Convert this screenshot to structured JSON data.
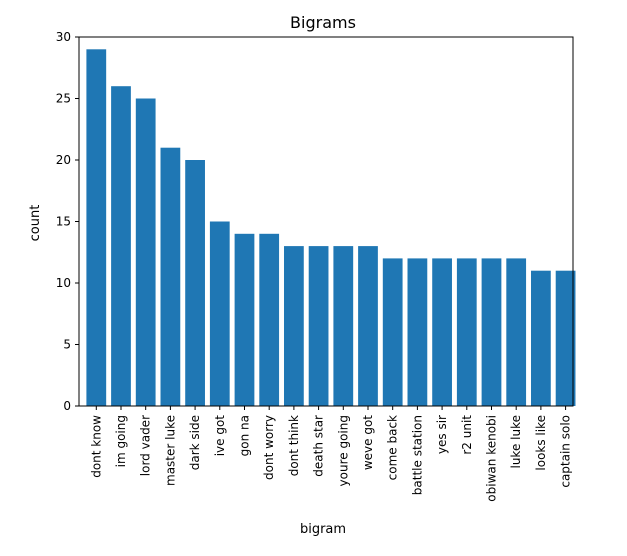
{
  "chart_data": {
    "type": "bar",
    "title": "Bigrams",
    "xlabel": "bigram",
    "ylabel": "count",
    "ylim": [
      0,
      30
    ],
    "yticks": [
      0,
      5,
      10,
      15,
      20,
      25,
      30
    ],
    "grid": false,
    "bar_color": "#1f77b4",
    "categories": [
      "dont know",
      "im going",
      "lord vader",
      "master luke",
      "dark side",
      "ive got",
      "gon na",
      "dont worry",
      "dont think",
      "death star",
      "youre going",
      "weve got",
      "come back",
      "battle station",
      "yes sir",
      "r2 unit",
      "obiwan kenobi",
      "luke luke",
      "looks like",
      "captain solo"
    ],
    "values": [
      29,
      26,
      25,
      21,
      20,
      15,
      14,
      14,
      13,
      13,
      13,
      13,
      12,
      12,
      12,
      12,
      12,
      12,
      11,
      11
    ]
  }
}
